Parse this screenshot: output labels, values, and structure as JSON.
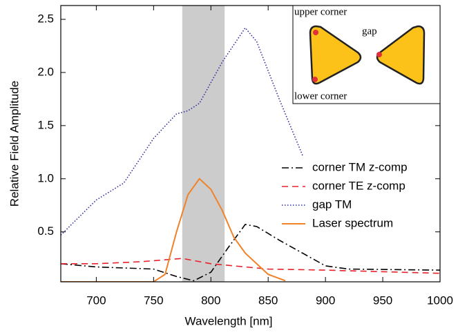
{
  "chart_data": {
    "type": "line",
    "xlabel": "Wavelength [nm]",
    "ylabel": "Relative Field Amplitude",
    "xlim": [
      669,
      1000
    ],
    "ylim": [
      0.03,
      2.63
    ],
    "xticks": [
      700,
      750,
      800,
      850,
      900,
      950,
      1000
    ],
    "yticks": [
      0.5,
      {
        "value": 1,
        "label": "1.0"
      },
      1.5,
      {
        "value": 2,
        "label": "2.0"
      },
      2.5
    ],
    "shaded_region": [
      775,
      812
    ],
    "shaded_color": "#cccccc",
    "series": [
      {
        "name": "corner TM z-comp",
        "color": "#000000",
        "style": "dashdot",
        "x": [
          669,
          700,
          750,
          770,
          785,
          800,
          815,
          830,
          840,
          860,
          880,
          900,
          920,
          1000
        ],
        "values": [
          0.2,
          0.17,
          0.15,
          0.08,
          0.04,
          0.12,
          0.35,
          0.57,
          0.55,
          0.42,
          0.3,
          0.18,
          0.15,
          0.14
        ]
      },
      {
        "name": "corner TE z-comp",
        "color": "#e8202a",
        "style": "dashed",
        "x": [
          669,
          700,
          740,
          775,
          800,
          850,
          900,
          1000
        ],
        "values": [
          0.2,
          0.2,
          0.22,
          0.25,
          0.2,
          0.15,
          0.14,
          0.11
        ]
      },
      {
        "name": "gap TM",
        "color": "#2b2ba0",
        "style": "dotted",
        "x": [
          669,
          700,
          724,
          750,
          770,
          780,
          790,
          810,
          830,
          840,
          860,
          880
        ],
        "values": [
          0.47,
          0.8,
          0.96,
          1.38,
          1.61,
          1.64,
          1.71,
          2.1,
          2.42,
          2.29,
          1.74,
          1.22
        ]
      },
      {
        "name": "Laser spectrum",
        "color": "#f0822a",
        "style": "solid",
        "x": [
          669,
          750,
          760,
          770,
          780,
          790,
          800,
          810,
          820,
          830,
          840,
          850,
          865
        ],
        "values": [
          0.03,
          0.03,
          0.1,
          0.5,
          0.85,
          1.0,
          0.9,
          0.7,
          0.45,
          0.3,
          0.2,
          0.1,
          0.04
        ]
      }
    ],
    "inset": {
      "upper_label": "upper corner",
      "gap_label": "gap",
      "lower_label": "lower corner"
    }
  }
}
